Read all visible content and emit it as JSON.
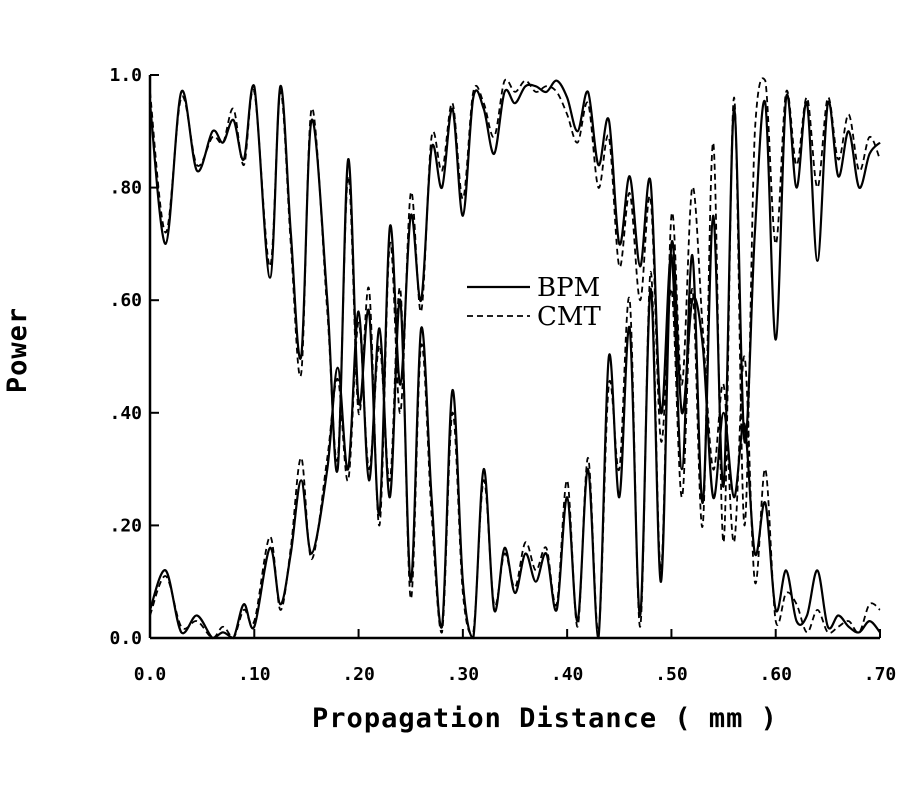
{
  "chart_data": {
    "type": "line",
    "xlabel": "Propagation Distance ( mm )",
    "ylabel": "Power",
    "xlim": [
      0.0,
      0.7
    ],
    "ylim": [
      0.0,
      1.0
    ],
    "x_ticks": [
      0.0,
      0.1,
      0.2,
      0.3,
      0.4,
      0.5,
      0.6,
      0.7
    ],
    "x_tick_labels": [
      "0.0",
      ".10",
      ".20",
      ".30",
      ".40",
      ".50",
      ".60",
      ".70"
    ],
    "y_ticks": [
      0.0,
      0.2,
      0.4,
      0.6,
      0.8,
      1.0
    ],
    "y_tick_labels": [
      "0.0",
      ".20",
      ".40",
      ".60",
      ".80",
      "1.0"
    ],
    "grid": false,
    "legend": {
      "placement": "center",
      "entries": [
        "BPM",
        "CMT"
      ]
    },
    "series": [
      {
        "name": "BPM",
        "style": "solid",
        "curves": [
          {
            "x": [
              0.0,
              0.015,
              0.03,
              0.045,
              0.06,
              0.07,
              0.08,
              0.09,
              0.1,
              0.115,
              0.125,
              0.135,
              0.145,
              0.155,
              0.17,
              0.18,
              0.19,
              0.2,
              0.21,
              0.22,
              0.23,
              0.24,
              0.25,
              0.26,
              0.27,
              0.28,
              0.29,
              0.3,
              0.31,
              0.32,
              0.33,
              0.34,
              0.35,
              0.36,
              0.37,
              0.38,
              0.39,
              0.4,
              0.41,
              0.42,
              0.43,
              0.44,
              0.45,
              0.46,
              0.47,
              0.48,
              0.49,
              0.5,
              0.51,
              0.52,
              0.53,
              0.54,
              0.55,
              0.56,
              0.57,
              0.58,
              0.59,
              0.6,
              0.61,
              0.62,
              0.63,
              0.64,
              0.65,
              0.66,
              0.67,
              0.68,
              0.69,
              0.7
            ],
            "y": [
              0.95,
              0.7,
              0.97,
              0.83,
              0.9,
              0.88,
              0.92,
              0.85,
              0.98,
              0.64,
              0.98,
              0.72,
              0.5,
              0.92,
              0.6,
              0.3,
              0.85,
              0.42,
              0.58,
              0.22,
              0.73,
              0.45,
              0.75,
              0.6,
              0.87,
              0.8,
              0.94,
              0.75,
              0.96,
              0.94,
              0.86,
              0.97,
              0.95,
              0.98,
              0.98,
              0.97,
              0.99,
              0.96,
              0.9,
              0.97,
              0.84,
              0.92,
              0.7,
              0.82,
              0.66,
              0.81,
              0.4,
              0.68,
              0.3,
              0.68,
              0.24,
              0.75,
              0.27,
              0.94,
              0.35,
              0.72,
              0.95,
              0.53,
              0.96,
              0.8,
              0.95,
              0.67,
              0.95,
              0.82,
              0.9,
              0.8,
              0.86,
              0.88
            ]
          },
          {
            "x": [
              0.0,
              0.015,
              0.03,
              0.045,
              0.06,
              0.07,
              0.08,
              0.09,
              0.1,
              0.115,
              0.125,
              0.135,
              0.145,
              0.155,
              0.17,
              0.18,
              0.19,
              0.2,
              0.21,
              0.22,
              0.23,
              0.24,
              0.25,
              0.26,
              0.27,
              0.28,
              0.29,
              0.3,
              0.31,
              0.32,
              0.33,
              0.34,
              0.35,
              0.36,
              0.37,
              0.38,
              0.39,
              0.4,
              0.41,
              0.42,
              0.43,
              0.44,
              0.45,
              0.46,
              0.47,
              0.48,
              0.49,
              0.5,
              0.51,
              0.52,
              0.53,
              0.54,
              0.55,
              0.56,
              0.57,
              0.58,
              0.59,
              0.6,
              0.61,
              0.62,
              0.63,
              0.64,
              0.65,
              0.66,
              0.67,
              0.68,
              0.69,
              0.7
            ],
            "y": [
              0.05,
              0.12,
              0.01,
              0.04,
              0.0,
              0.01,
              0.0,
              0.06,
              0.02,
              0.16,
              0.06,
              0.15,
              0.28,
              0.15,
              0.3,
              0.48,
              0.3,
              0.58,
              0.28,
              0.55,
              0.25,
              0.6,
              0.1,
              0.55,
              0.25,
              0.02,
              0.44,
              0.1,
              0.0,
              0.3,
              0.05,
              0.16,
              0.08,
              0.15,
              0.1,
              0.15,
              0.05,
              0.25,
              0.03,
              0.3,
              0.0,
              0.5,
              0.25,
              0.55,
              0.04,
              0.62,
              0.1,
              0.7,
              0.4,
              0.6,
              0.52,
              0.25,
              0.4,
              0.25,
              0.38,
              0.15,
              0.24,
              0.05,
              0.12,
              0.03,
              0.04,
              0.12,
              0.02,
              0.04,
              0.02,
              0.01,
              0.03,
              0.01
            ]
          }
        ]
      },
      {
        "name": "CMT",
        "style": "dashed",
        "curves": [
          {
            "x": [
              0.0,
              0.015,
              0.03,
              0.045,
              0.06,
              0.07,
              0.08,
              0.09,
              0.1,
              0.115,
              0.125,
              0.135,
              0.145,
              0.155,
              0.17,
              0.18,
              0.19,
              0.2,
              0.21,
              0.22,
              0.23,
              0.24,
              0.25,
              0.26,
              0.27,
              0.28,
              0.29,
              0.3,
              0.31,
              0.32,
              0.33,
              0.34,
              0.35,
              0.36,
              0.37,
              0.38,
              0.39,
              0.4,
              0.41,
              0.42,
              0.43,
              0.44,
              0.45,
              0.46,
              0.47,
              0.48,
              0.49,
              0.5,
              0.51,
              0.52,
              0.53,
              0.54,
              0.55,
              0.56,
              0.57,
              0.58,
              0.59,
              0.6,
              0.61,
              0.62,
              0.63,
              0.64,
              0.65,
              0.66,
              0.67,
              0.68,
              0.69,
              0.7
            ],
            "y": [
              0.97,
              0.72,
              0.96,
              0.84,
              0.89,
              0.88,
              0.94,
              0.84,
              0.97,
              0.66,
              0.97,
              0.7,
              0.47,
              0.94,
              0.58,
              0.32,
              0.82,
              0.4,
              0.62,
              0.2,
              0.7,
              0.4,
              0.79,
              0.58,
              0.89,
              0.83,
              0.95,
              0.78,
              0.97,
              0.95,
              0.89,
              0.99,
              0.97,
              0.99,
              0.97,
              0.98,
              0.97,
              0.93,
              0.88,
              0.95,
              0.8,
              0.89,
              0.66,
              0.79,
              0.6,
              0.78,
              0.35,
              0.62,
              0.25,
              0.62,
              0.2,
              0.88,
              0.17,
              0.96,
              0.2,
              0.9,
              0.99,
              0.7,
              0.97,
              0.84,
              0.96,
              0.8,
              0.96,
              0.85,
              0.93,
              0.83,
              0.89,
              0.85
            ]
          },
          {
            "x": [
              0.0,
              0.015,
              0.03,
              0.045,
              0.06,
              0.07,
              0.08,
              0.09,
              0.1,
              0.115,
              0.125,
              0.135,
              0.145,
              0.155,
              0.17,
              0.18,
              0.19,
              0.2,
              0.21,
              0.22,
              0.23,
              0.24,
              0.25,
              0.26,
              0.27,
              0.28,
              0.29,
              0.3,
              0.31,
              0.32,
              0.33,
              0.34,
              0.35,
              0.36,
              0.37,
              0.38,
              0.39,
              0.4,
              0.41,
              0.42,
              0.43,
              0.44,
              0.45,
              0.46,
              0.47,
              0.48,
              0.49,
              0.5,
              0.51,
              0.52,
              0.53,
              0.54,
              0.55,
              0.56,
              0.57,
              0.58,
              0.59,
              0.6,
              0.61,
              0.62,
              0.63,
              0.64,
              0.65,
              0.66,
              0.67,
              0.68,
              0.69,
              0.7
            ],
            "y": [
              0.04,
              0.11,
              0.02,
              0.03,
              0.0,
              0.02,
              0.0,
              0.05,
              0.03,
              0.18,
              0.05,
              0.16,
              0.32,
              0.14,
              0.32,
              0.46,
              0.28,
              0.56,
              0.3,
              0.52,
              0.28,
              0.62,
              0.07,
              0.52,
              0.22,
              0.01,
              0.4,
              0.08,
              0.01,
              0.28,
              0.06,
              0.15,
              0.09,
              0.17,
              0.12,
              0.16,
              0.06,
              0.28,
              0.02,
              0.32,
              0.01,
              0.45,
              0.3,
              0.6,
              0.02,
              0.65,
              0.12,
              0.75,
              0.45,
              0.8,
              0.55,
              0.3,
              0.45,
              0.17,
              0.5,
              0.1,
              0.3,
              0.03,
              0.08,
              0.06,
              0.01,
              0.05,
              0.01,
              0.02,
              0.03,
              0.01,
              0.06,
              0.05
            ]
          }
        ]
      }
    ]
  }
}
